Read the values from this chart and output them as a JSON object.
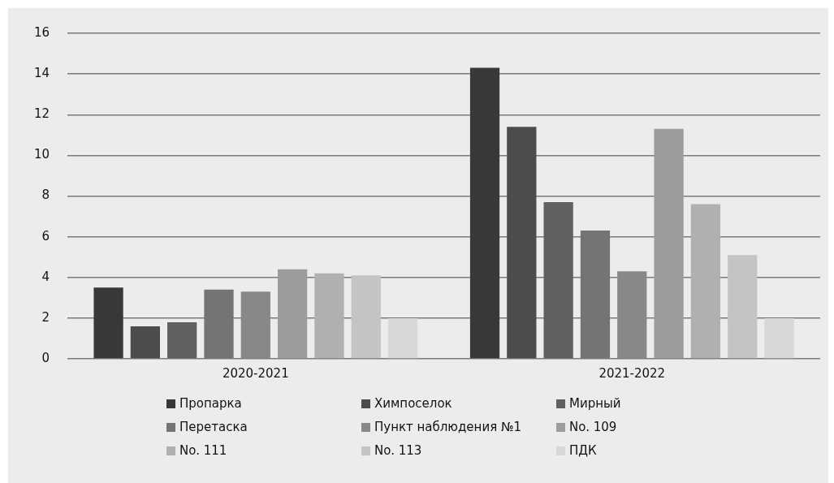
{
  "chart_data": {
    "type": "bar",
    "categories": [
      "2020-2021",
      "2021-2022"
    ],
    "series": [
      {
        "name": "Пропарка",
        "color": "#383838",
        "values": [
          3.5,
          14.3
        ]
      },
      {
        "name": "Химпоселок",
        "color": "#4c4c4c",
        "values": [
          1.6,
          11.4
        ]
      },
      {
        "name": "Мирный",
        "color": "#606060",
        "values": [
          1.8,
          7.7
        ]
      },
      {
        "name": "Перетаска",
        "color": "#747474",
        "values": [
          3.4,
          6.3
        ]
      },
      {
        "name": "Пункт наблюдения №1",
        "color": "#888888",
        "values": [
          3.3,
          4.3
        ]
      },
      {
        "name": "No. 109",
        "color": "#9c9c9c",
        "values": [
          4.4,
          11.3
        ]
      },
      {
        "name": "No. 111",
        "color": "#b0b0b0",
        "values": [
          4.2,
          7.6
        ]
      },
      {
        "name": "No. 113",
        "color": "#c4c4c4",
        "values": [
          4.1,
          5.1
        ]
      },
      {
        "name": "ПДК",
        "color": "#d8d8d8",
        "values": [
          2,
          2
        ]
      }
    ],
    "ylim": [
      0,
      16
    ],
    "yticks": [
      0,
      2,
      4,
      6,
      8,
      10,
      12,
      14,
      16
    ],
    "grid": "y",
    "legend": "bottom"
  }
}
